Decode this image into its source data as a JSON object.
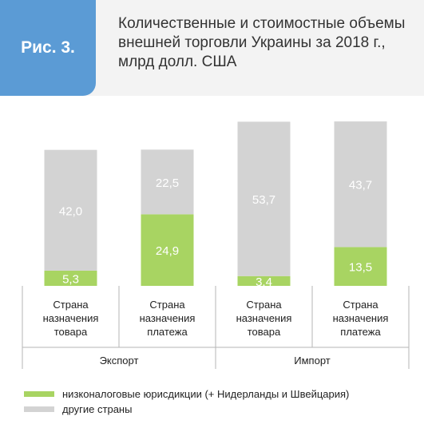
{
  "header": {
    "badge": "Рис. 3.",
    "title_lines": [
      "Количественные и стоимостные объемы",
      "внешней торговли Украины за 2018 г.,",
      "млрд долл. США"
    ]
  },
  "colors": {
    "header_bg": "#f3f3f3",
    "badge_bg": "#5b9bd5",
    "lowtax": "#a8d462",
    "other": "#d3d3d3"
  },
  "chart_data": {
    "type": "bar",
    "stacked": true,
    "title": "Количественные и стоимостные объемы внешней торговли Украины за 2018 г., млрд долл. США",
    "categories": [
      "Страна назначения товара",
      "Страна назначения платежа",
      "Страна назначения товара",
      "Страна назначения платежа"
    ],
    "category_lines": [
      [
        "Страна",
        "назначения",
        "товара"
      ],
      [
        "Страна",
        "назначения",
        "платежа"
      ],
      [
        "Страна",
        "назначения",
        "товара"
      ],
      [
        "Страна",
        "назначения",
        "платежа"
      ]
    ],
    "groups": [
      {
        "label": "Экспорт",
        "categories": [
          0,
          1
        ]
      },
      {
        "label": "Импорт",
        "categories": [
          2,
          3
        ]
      }
    ],
    "series": [
      {
        "name": "низконалоговые юрисдикции (+ Нидерланды и Швейцария)",
        "color": "#a8d462",
        "values": [
          5.3,
          24.9,
          3.4,
          13.5
        ],
        "labels": [
          "5,3",
          "24,9",
          "3,4",
          "13,5"
        ]
      },
      {
        "name": "другие страны",
        "color": "#d3d3d3",
        "values": [
          42.0,
          22.5,
          53.7,
          43.7
        ],
        "labels": [
          "42,0",
          "22,5",
          "53,7",
          "43,7"
        ]
      }
    ],
    "ylim": [
      0,
      60
    ]
  }
}
